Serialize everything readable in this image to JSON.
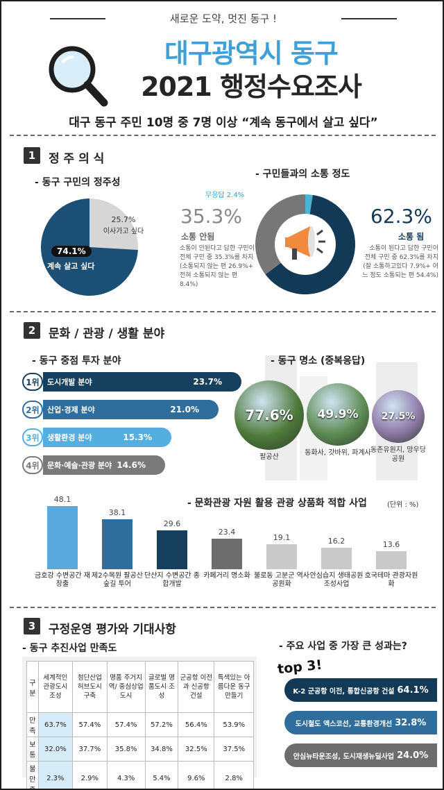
{
  "header": {
    "tagline": "새로운 도약, 멋진 동구 !",
    "title_line1": "대구광역시 동구",
    "title_line2": "2021 행정수요조사",
    "headline": "대구 동구 주민 10명 중 7명 이상 “계속 동구에서 살고 싶다”"
  },
  "section1": {
    "number": "1",
    "title": "정 주 의 식",
    "residency": {
      "subtitle": "- 동구 구민의 정주성",
      "stay_value": "74.1%",
      "stay_label": "계속 살고 싶다",
      "move_value": "25.7%",
      "move_label": "이사가고 싶다",
      "stay_fraction": 0.741,
      "colors": {
        "stay": "#1c4f75",
        "move": "#d6d6d6"
      }
    },
    "communication": {
      "subtitle": "- 구민들과의 소통 정도",
      "no_answer_label": "무응답 2.4%",
      "no_value": "35.3%",
      "no_label": "소통 안됨",
      "no_desc": "소통이 안된다고 답한 구민이 전체 구민 중 35.3%를 차지 (소통되지 않는 편 26.9%+ 전혀 소통되지 않는 편 8.4%)",
      "yes_value": "62.3%",
      "yes_label": "소통 됨",
      "yes_desc": "소통이 된다고 답한 구민이 전체 구민 중 62.3%를 차지 (잘 소통하고있다 7.9%+ 어느 정도 소통되는 편 54.4%)",
      "fractions": {
        "yes": 0.623,
        "no": 0.353,
        "none": 0.024
      },
      "colors": {
        "yes": "#123a56",
        "no": "#777777",
        "none": "#4ab3d6"
      }
    }
  },
  "section2": {
    "number": "2",
    "title": "문화 / 관광 / 생활 분야",
    "investment": {
      "subtitle": "- 동구 중점 투자 분야",
      "items": [
        {
          "rank": "1위",
          "label": "도시개발 분야",
          "value": "23.7%",
          "pct": 23.7,
          "color": "#17405f"
        },
        {
          "rank": "2위",
          "label": "산업·경제 분야",
          "value": "21.0%",
          "pct": 21.0,
          "color": "#2f6d9c"
        },
        {
          "rank": "3위",
          "label": "생활환경 분야",
          "value": "15.3%",
          "pct": 15.3,
          "color": "#54aee0"
        },
        {
          "rank": "4위",
          "label": "문화·예술·관광 분야",
          "value": "14.6%",
          "pct": 14.6,
          "color": "#7a7a7a"
        }
      ]
    },
    "landmarks": {
      "subtitle": "- 동구 명소 (중복응답)",
      "items": [
        {
          "value": "77.6%",
          "label": "팔공산",
          "color": "#4e7a3a"
        },
        {
          "value": "49.9%",
          "label": "동화사, 갓바위, 파계사",
          "color": "#5f8c55"
        },
        {
          "value": "27.5%",
          "label": "동촌유원지, 망우당 공원",
          "color": "#8f7aa8"
        }
      ]
    },
    "tourism_chart": {
      "subtitle": "- 문화관광 자원 활용 관광 상품화 적합 사업",
      "unit": "(단위 : %)"
    }
  },
  "chart_data": {
    "type": "bar",
    "title": "문화관광 자원 활용 관광 상품화 적합 사업",
    "unit": "%",
    "categories": [
      "금호강 수변공간 재창출",
      "제2수목원 팔공산 숲길 투어",
      "단산지 수변공간 종합개발",
      "카페거리 명소화",
      "불로동 고분군 역사공원화",
      "안심습지 생태공원 조성사업",
      "호국테마 관광자원화"
    ],
    "values": [
      48.1,
      38.1,
      29.6,
      23.4,
      19.1,
      16.2,
      13.6
    ],
    "colors": [
      "#5aa8dc",
      "#2f6d9c",
      "#163f5e",
      "#6d6d6d",
      "#c9c9c9",
      "#c9c9c9",
      "#c9c9c9"
    ],
    "ylim": [
      0,
      50
    ]
  },
  "section3": {
    "number": "3",
    "title": "구정운영 평가와 기대사항",
    "satisfaction": {
      "subtitle": "- 동구 추진사업 만족도",
      "corner": "구분",
      "headers": [
        "세계적인 관광도시 조성",
        "첨단산업 허브도시 구축",
        "명품 주거지역/ 중심상업 도시",
        "글로벌 명품도시 조성",
        "군공항 이전과 신공항 건설",
        "특색있는 아름다운 동구 만들기"
      ],
      "rows": [
        {
          "label": "만족",
          "values": [
            "63.7%",
            "57.4%",
            "57.4%",
            "57.2%",
            "56.4%",
            "53.9%"
          ]
        },
        {
          "label": "보통",
          "values": [
            "32.0%",
            "37.7%",
            "35.8%",
            "34.8%",
            "32.5%",
            "37.5%"
          ]
        },
        {
          "label": "불만족",
          "values": [
            "2.3%",
            "2.9%",
            "4.3%",
            "5.4%",
            "9.6%",
            "2.8%"
          ]
        }
      ]
    },
    "achievements": {
      "subtitle": "- 주요 사업 중 가장 큰 성과는?",
      "top_label": "top 3!",
      "items": [
        {
          "label": "K-2 군공항 이전, 통합신공항 건설",
          "value": "64.1%",
          "color": "#123a56"
        },
        {
          "label": "도시철도 엑스코선, 교통환경개선",
          "value": "32.8%",
          "color": "#2f6d9c"
        },
        {
          "label": "안심뉴타운조성, 도시재생뉴딜사업",
          "value": "24.0%",
          "color": "#6d6d6d"
        }
      ]
    }
  }
}
